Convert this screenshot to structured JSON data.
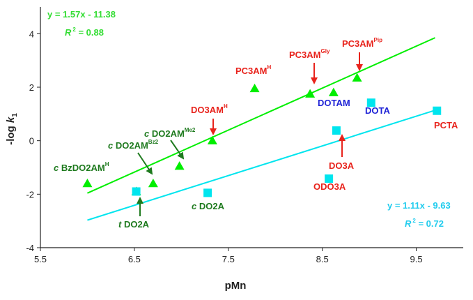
{
  "chart_data": {
    "type": "scatter",
    "xlabel": "pMn",
    "ylabel_main": "-log ",
    "ylabel_italic": "k",
    "ylabel_sub": "1",
    "xlim": [
      5.5,
      10.0
    ],
    "ylim": [
      -4,
      5
    ],
    "xticks": [
      5.5,
      6.5,
      7.5,
      8.5,
      9.5
    ],
    "xtick_labels": [
      "5.5",
      "6.5",
      "7.5",
      "8.5",
      "9.5"
    ],
    "yticks": [
      -4,
      -2,
      0,
      2,
      4
    ],
    "ytick_labels": [
      "-4",
      "-2",
      "0",
      "2",
      "4"
    ],
    "colors": {
      "green_series": "#00ee00",
      "cyan_series": "#00e5ee",
      "green_label": "#1e7a1e",
      "red_label": "#e8231c",
      "blue_label": "#1f23d6",
      "green_eq": "#33dd33",
      "cyan_eq": "#22ccee"
    },
    "series": [
      {
        "name": "green",
        "marker": "triangle",
        "points": [
          {
            "x": 6.0,
            "y": -1.6
          },
          {
            "x": 6.52,
            "y": -1.9
          },
          {
            "x": 6.7,
            "y": -1.6
          },
          {
            "x": 6.98,
            "y": -0.95
          },
          {
            "x": 7.33,
            "y": 0.0
          },
          {
            "x": 7.78,
            "y": 1.95
          },
          {
            "x": 8.37,
            "y": 1.75
          },
          {
            "x": 8.62,
            "y": 1.8
          },
          {
            "x": 8.87,
            "y": 2.35
          }
        ],
        "fit": {
          "slope": 1.57,
          "intercept": -11.38,
          "x_from": 6.0,
          "x_to": 9.7
        },
        "equation": "y = 1.57x - 11.38",
        "r2_letter": "R",
        "r2_exp": "2",
        "r2_value": " = 0.88"
      },
      {
        "name": "cyan",
        "marker": "square",
        "points": [
          {
            "x": 6.52,
            "y": -1.9
          },
          {
            "x": 7.28,
            "y": -1.95
          },
          {
            "x": 8.57,
            "y": -1.42
          },
          {
            "x": 8.65,
            "y": 0.38
          },
          {
            "x": 9.02,
            "y": 1.42
          },
          {
            "x": 9.72,
            "y": 1.12
          }
        ],
        "fit": {
          "slope": 1.11,
          "intercept": -9.63,
          "x_from": 6.0,
          "x_to": 9.7
        },
        "equation": "y = 1.11x - 9.63",
        "r2_letter": "R",
        "r2_exp": "2",
        "r2_value": " = 0.72"
      }
    ],
    "annotations": [
      {
        "id": "bzdo2am",
        "prefix": "c",
        "text": " BzDO2AM",
        "sup": "H",
        "color": "green_label"
      },
      {
        "id": "cdo2ambz2",
        "prefix": "c",
        "text": " DO2AM",
        "sup": "Bz2",
        "color": "green_label"
      },
      {
        "id": "cdo2amme2",
        "prefix": "c",
        "text": " DO2AM",
        "sup": "Me2",
        "color": "green_label"
      },
      {
        "id": "tdo2a",
        "prefix": "t",
        "text": " DO2A",
        "sup": "",
        "color": "green_label"
      },
      {
        "id": "cdo2a",
        "prefix": "c",
        "text": " DO2A",
        "sup": "",
        "color": "green_label"
      },
      {
        "id": "do3amh",
        "prefix": "",
        "text": "DO3AM",
        "sup": "H",
        "color": "red_label"
      },
      {
        "id": "pc3amh",
        "prefix": "",
        "text": "PC3AM",
        "sup": "H",
        "color": "red_label"
      },
      {
        "id": "pc3amgly",
        "prefix": "",
        "text": "PC3AM",
        "sup": "Gly",
        "color": "red_label"
      },
      {
        "id": "pc3ampip",
        "prefix": "",
        "text": "PC3AM",
        "sup": "Pip",
        "color": "red_label"
      },
      {
        "id": "dotam",
        "prefix": "",
        "text": "DOTAM",
        "sup": "",
        "color": "blue_label"
      },
      {
        "id": "dota",
        "prefix": "",
        "text": "DOTA",
        "sup": "",
        "color": "blue_label"
      },
      {
        "id": "pcta",
        "prefix": "",
        "text": "PCTA",
        "sup": "",
        "color": "red_label"
      },
      {
        "id": "do3a",
        "prefix": "",
        "text": "DO3A",
        "sup": "",
        "color": "red_label"
      },
      {
        "id": "odo3a",
        "prefix": "",
        "text": "ODO3A",
        "sup": "",
        "color": "red_label"
      }
    ]
  }
}
